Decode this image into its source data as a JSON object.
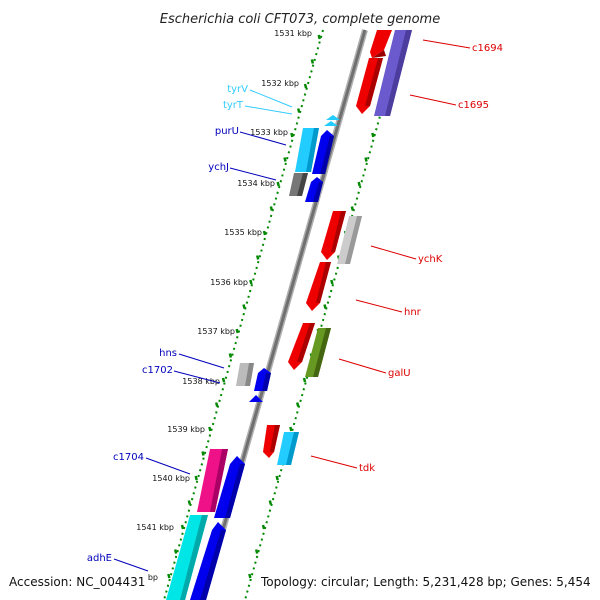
{
  "title": "Escherichia coli CFT073, complete genome",
  "accession": "Accession: NC_004431",
  "topology": "Topology: circular; Length: 5,231,428 bp; Genes: 5,454",
  "ticks": [
    "1531 kbp",
    "1532 kbp",
    "1533 kbp",
    "1534 kbp",
    "1535 kbp",
    "1536 kbp",
    "1537 kbp",
    "1538 kbp",
    "1539 kbp",
    "1540 kbp",
    "1541 kbp",
    "bp"
  ],
  "genes": [
    {
      "label": "c1694",
      "color": "#dd0000"
    },
    {
      "label": "c1695",
      "color": "#dd0000"
    },
    {
      "label": "tyrV",
      "color": "#33ccff"
    },
    {
      "label": "tyrT",
      "color": "#33ccff"
    },
    {
      "label": "purU",
      "color": "#0000bb"
    },
    {
      "label": "ychJ",
      "color": "#0000bb"
    },
    {
      "label": "ychK",
      "color": "#dd0000"
    },
    {
      "label": "hnr",
      "color": "#dd0000"
    },
    {
      "label": "galU",
      "color": "#dd0000"
    },
    {
      "label": "hns",
      "color": "#0000bb"
    },
    {
      "label": "c1702",
      "color": "#0000bb"
    },
    {
      "label": "tdk",
      "color": "#dd0000"
    },
    {
      "label": "c1704",
      "color": "#0000bb"
    },
    {
      "label": "adhE",
      "color": "#0000bb"
    }
  ],
  "colors": {
    "forward_cds": "#ee0000",
    "forward_orf": "#0000ee",
    "trna": "#22ccff",
    "pseudo": "#bbbbbb",
    "orange_green": "#669922",
    "pink": "#ee1188",
    "purple": "#6a5acd",
    "cyan": "#00e5e5",
    "backbone": "#888888",
    "tick_green": "#008800"
  }
}
